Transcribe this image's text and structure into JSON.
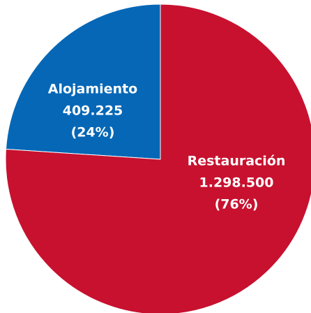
{
  "chart_data": {
    "type": "pie",
    "categories": [
      "Alojamiento",
      "Restauración"
    ],
    "values": [
      409225,
      1298500
    ],
    "value_labels": [
      "409.225",
      "1.298.500"
    ],
    "percent_labels": [
      "(24%)",
      "(76%)"
    ],
    "colors": [
      "#0567b6",
      "#c7112f"
    ]
  }
}
